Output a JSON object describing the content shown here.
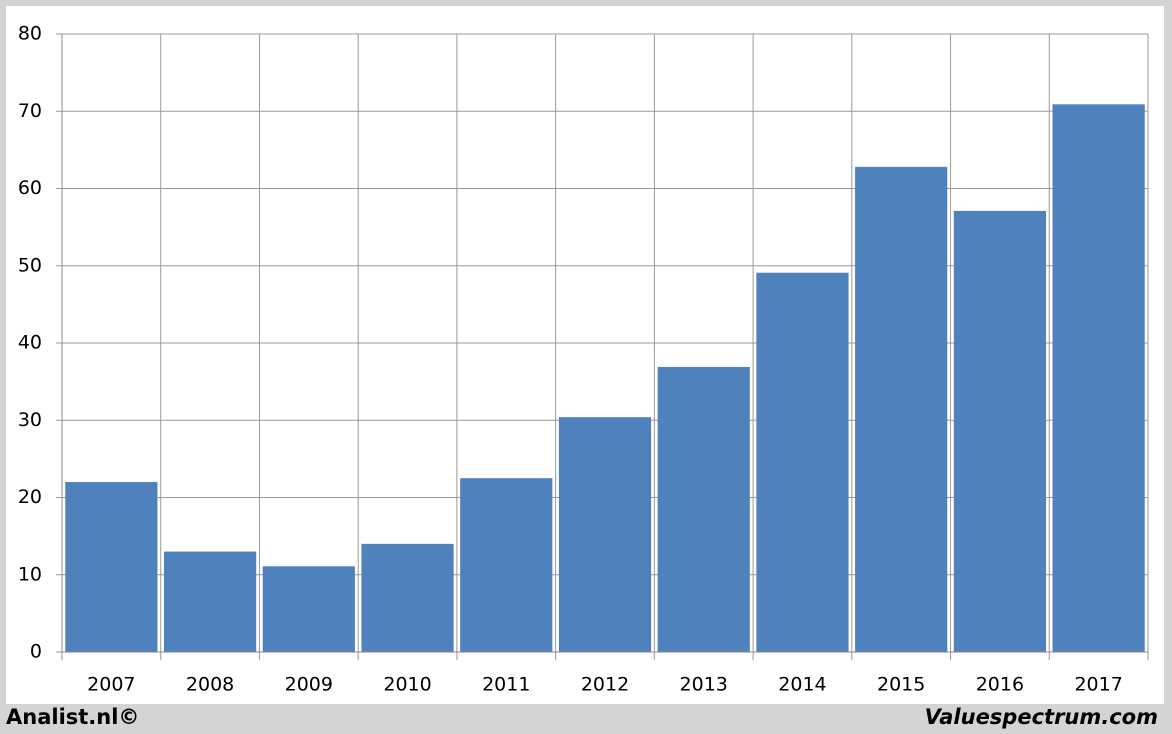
{
  "chart_data": {
    "type": "bar",
    "categories": [
      "2007",
      "2008",
      "2009",
      "2010",
      "2011",
      "2012",
      "2013",
      "2014",
      "2015",
      "2016",
      "2017"
    ],
    "values": [
      22.0,
      13.0,
      11.1,
      14.0,
      22.5,
      30.4,
      36.9,
      49.1,
      62.8,
      57.1,
      70.9
    ],
    "color": "#4f81bd",
    "ylim": [
      0,
      80
    ],
    "yticks": [
      0,
      10,
      20,
      30,
      40,
      50,
      60,
      70,
      80
    ],
    "grid": true
  },
  "footer": {
    "left": "Analist.nl©",
    "right": "Valuespectrum.com"
  }
}
